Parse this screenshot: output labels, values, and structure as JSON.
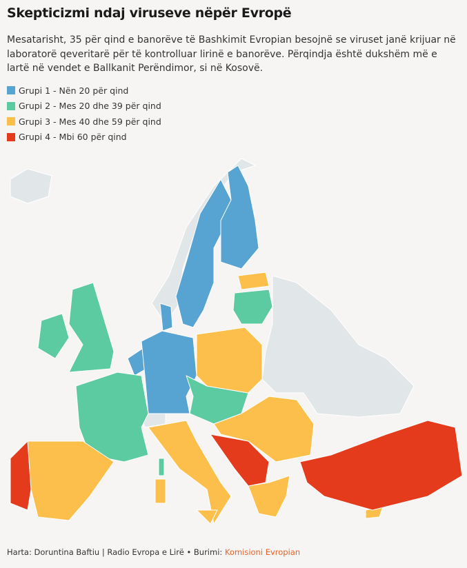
{
  "header": {
    "title": "Skepticizmi ndaj viruseve nëpër Evropë",
    "subtitle": "Mesatarisht, 35 për qind e banorëve të Bashkimit Evropian besojnë se viruset janë krijuar në laboratorë qeveritarë për të kontrolluar lirinë e banorëve. Përqindja është dukshëm më e lartë në vendet e Ballkanit Perëndimor, si në Kosovë."
  },
  "legend": {
    "items": [
      {
        "label": "Grupi 1 - Nën 20 për qind",
        "color": "#57a3d2"
      },
      {
        "label": "Grupi 2 - Mes 20 dhe 39 për qind",
        "color": "#5ccba1"
      },
      {
        "label": "Grupi 3 - Mes 40 dhe 59 për qind",
        "color": "#fdbf4b"
      },
      {
        "label": "Grupi 4 - Mbi 60 për qind",
        "color": "#e33b1b"
      }
    ]
  },
  "footer": {
    "credit": "Harta: Doruntina Baftiu | Radio Evropa e Lirë • Burimi:",
    "source": "Komisioni Evropian"
  }
}
